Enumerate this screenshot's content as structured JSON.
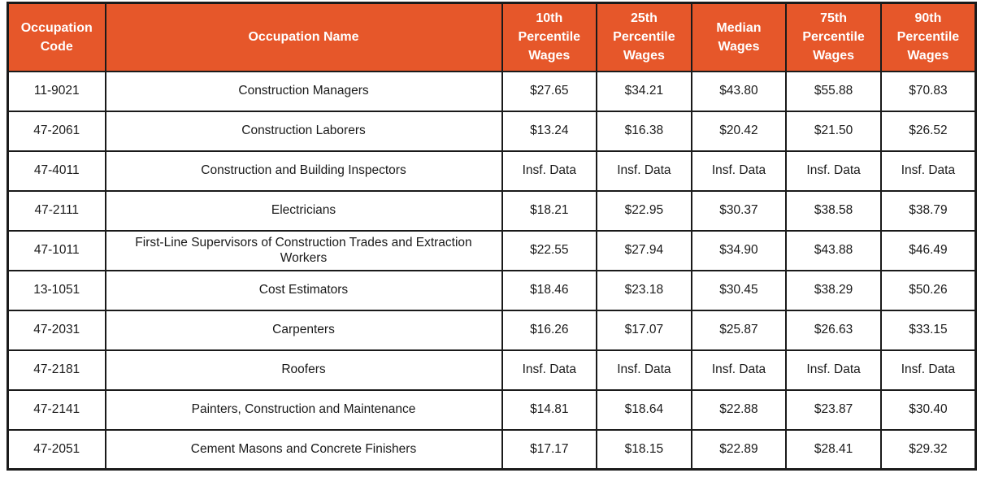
{
  "colors": {
    "header_bg": "#e6572a",
    "header_text": "#ffffff",
    "cell_bg": "#ffffff",
    "border": "#1a1a1a"
  },
  "table": {
    "columns": [
      {
        "label": "Occupation Code"
      },
      {
        "label": "Occupation Name"
      },
      {
        "label": "10th Percentile Wages"
      },
      {
        "label": "25th Percentile Wages"
      },
      {
        "label": "Median Wages"
      },
      {
        "label": "75th Percentile Wages"
      },
      {
        "label": "90th Percentile Wages"
      }
    ],
    "rows": [
      {
        "code": "11-9021",
        "name": "Construction Managers",
        "wages": [
          "$27.65",
          "$34.21",
          "$43.80",
          "$55.88",
          "$70.83"
        ]
      },
      {
        "code": "47-2061",
        "name": "Construction Laborers",
        "wages": [
          "$13.24",
          "$16.38",
          "$20.42",
          "$21.50",
          "$26.52"
        ]
      },
      {
        "code": "47-4011",
        "name": "Construction and Building Inspectors",
        "wages": [
          "Insf. Data",
          "Insf. Data",
          "Insf. Data",
          "Insf. Data",
          "Insf. Data"
        ]
      },
      {
        "code": "47-2111",
        "name": "Electricians",
        "wages": [
          "$18.21",
          "$22.95",
          "$30.37",
          "$38.58",
          "$38.79"
        ]
      },
      {
        "code": "47-1011",
        "name": "First-Line Supervisors of Construction Trades and Extraction Workers",
        "wages": [
          "$22.55",
          "$27.94",
          "$34.90",
          "$43.88",
          "$46.49"
        ]
      },
      {
        "code": "13-1051",
        "name": "Cost Estimators",
        "wages": [
          "$18.46",
          "$23.18",
          "$30.45",
          "$38.29",
          "$50.26"
        ]
      },
      {
        "code": "47-2031",
        "name": "Carpenters",
        "wages": [
          "$16.26",
          "$17.07",
          "$25.87",
          "$26.63",
          "$33.15"
        ]
      },
      {
        "code": "47-2181",
        "name": "Roofers",
        "wages": [
          "Insf. Data",
          "Insf. Data",
          "Insf. Data",
          "Insf. Data",
          "Insf. Data"
        ]
      },
      {
        "code": "47-2141",
        "name": "Painters, Construction and Maintenance",
        "wages": [
          "$14.81",
          "$18.64",
          "$22.88",
          "$23.87",
          "$30.40"
        ]
      },
      {
        "code": "47-2051",
        "name": "Cement Masons and Concrete Finishers",
        "wages": [
          "$17.17",
          "$18.15",
          "$22.89",
          "$28.41",
          "$29.32"
        ]
      }
    ]
  }
}
